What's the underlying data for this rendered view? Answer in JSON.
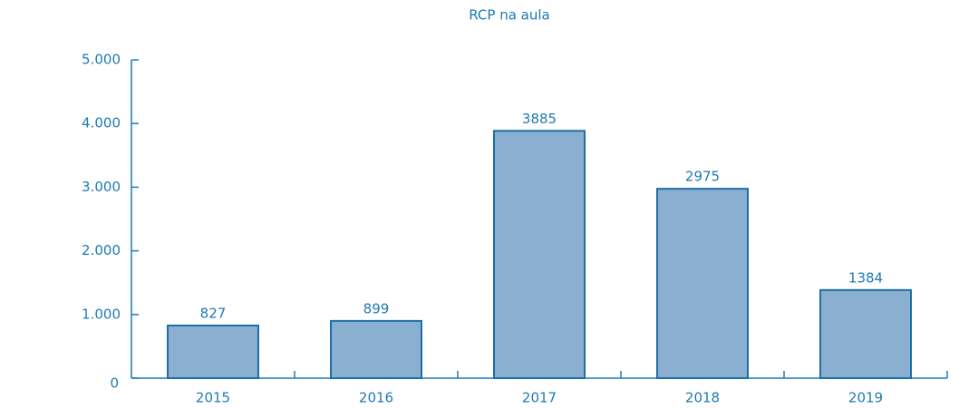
{
  "chart_data": {
    "type": "bar",
    "title": "RCP na aula",
    "categories": [
      "2015",
      "2016",
      "2017",
      "2018",
      "2019"
    ],
    "values": [
      827,
      899,
      3885,
      2975,
      1384
    ],
    "color": "#8aafd1",
    "ylim": [
      0,
      5000
    ],
    "yticks": [
      0,
      {
        "value": 1000,
        "label": "1.000"
      },
      {
        "value": 2000,
        "label": "2.000"
      },
      {
        "value": 3000,
        "label": "3.000"
      },
      {
        "value": 4000,
        "label": "4.000"
      },
      {
        "value": 5000,
        "label": "5.000"
      }
    ]
  }
}
